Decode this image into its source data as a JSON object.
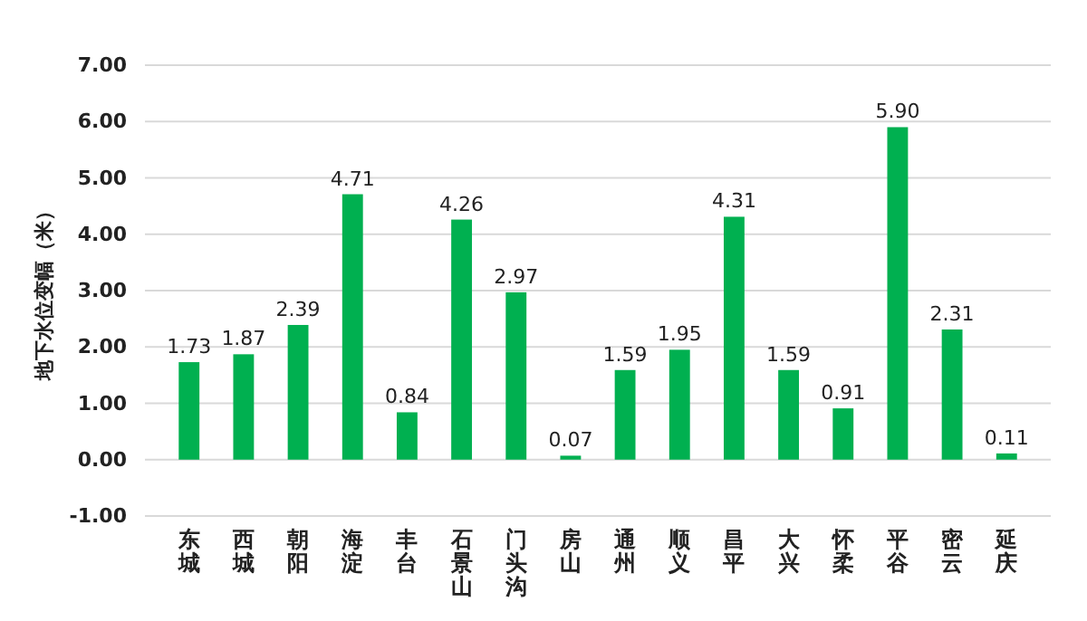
{
  "chart_data": {
    "type": "bar",
    "ylabel": "地下水位变幅（米）",
    "categories": [
      "东城",
      "西城",
      "朝阳",
      "海淀",
      "丰台",
      "石景山",
      "门头沟",
      "房山",
      "通州",
      "顺义",
      "昌平",
      "大兴",
      "怀柔",
      "平谷",
      "密云",
      "延庆"
    ],
    "values": [
      1.73,
      1.87,
      2.39,
      4.71,
      0.84,
      4.26,
      2.97,
      0.07,
      1.59,
      1.95,
      4.31,
      1.59,
      0.91,
      5.9,
      2.31,
      0.11
    ],
    "color": "#00b050",
    "ylim": [
      -1,
      7
    ],
    "yticks": [
      {
        "value": -1,
        "label": "-1.00"
      },
      {
        "value": 0,
        "label": "0.00"
      },
      {
        "value": 1,
        "label": "1.00"
      },
      {
        "value": 2,
        "label": "2.00"
      },
      {
        "value": 3,
        "label": "3.00"
      },
      {
        "value": 4,
        "label": "4.00"
      },
      {
        "value": 5,
        "label": "5.00"
      },
      {
        "value": 6,
        "label": "6.00"
      },
      {
        "value": 7,
        "label": "7.00"
      }
    ],
    "value_labels": [
      "1.73",
      "1.87",
      "2.39",
      "4.71",
      "0.84",
      "4.26",
      "2.97",
      "0.07",
      "1.59",
      "1.95",
      "4.31",
      "1.59",
      "0.91",
      "5.90",
      "2.31",
      "0.11"
    ],
    "grid": "y"
  }
}
